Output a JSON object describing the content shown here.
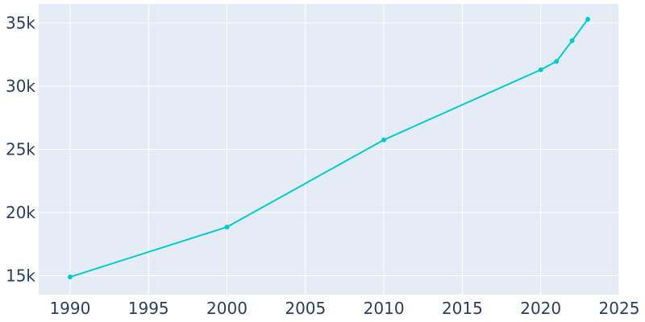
{
  "chart_data": {
    "type": "line",
    "x": [
      1990,
      2000,
      2010,
      2020,
      2021,
      2022,
      2023
    ],
    "series": [
      {
        "values": [
          14900,
          18850,
          25750,
          31300,
          31950,
          33600,
          35300
        ],
        "color": "#00cccc"
      }
    ],
    "xlim": [
      1988,
      2025
    ],
    "ylim": [
      13500,
      36500
    ],
    "x_ticks": [
      1990,
      1995,
      2000,
      2005,
      2010,
      2015,
      2020,
      2025
    ],
    "x_tick_labels": [
      "1990",
      "1995",
      "2000",
      "2005",
      "2010",
      "2015",
      "2020",
      "2025"
    ],
    "y_ticks": [
      15000,
      20000,
      25000,
      30000,
      35000
    ],
    "y_tick_labels": [
      "15k",
      "20k",
      "25k",
      "30k",
      "35k"
    ],
    "grid": true,
    "legend": "none",
    "colors": {
      "plot_background": "#e5ecf6",
      "grid": "#ffffff",
      "text": "#2a3f5f",
      "line": "#00cccc"
    }
  }
}
